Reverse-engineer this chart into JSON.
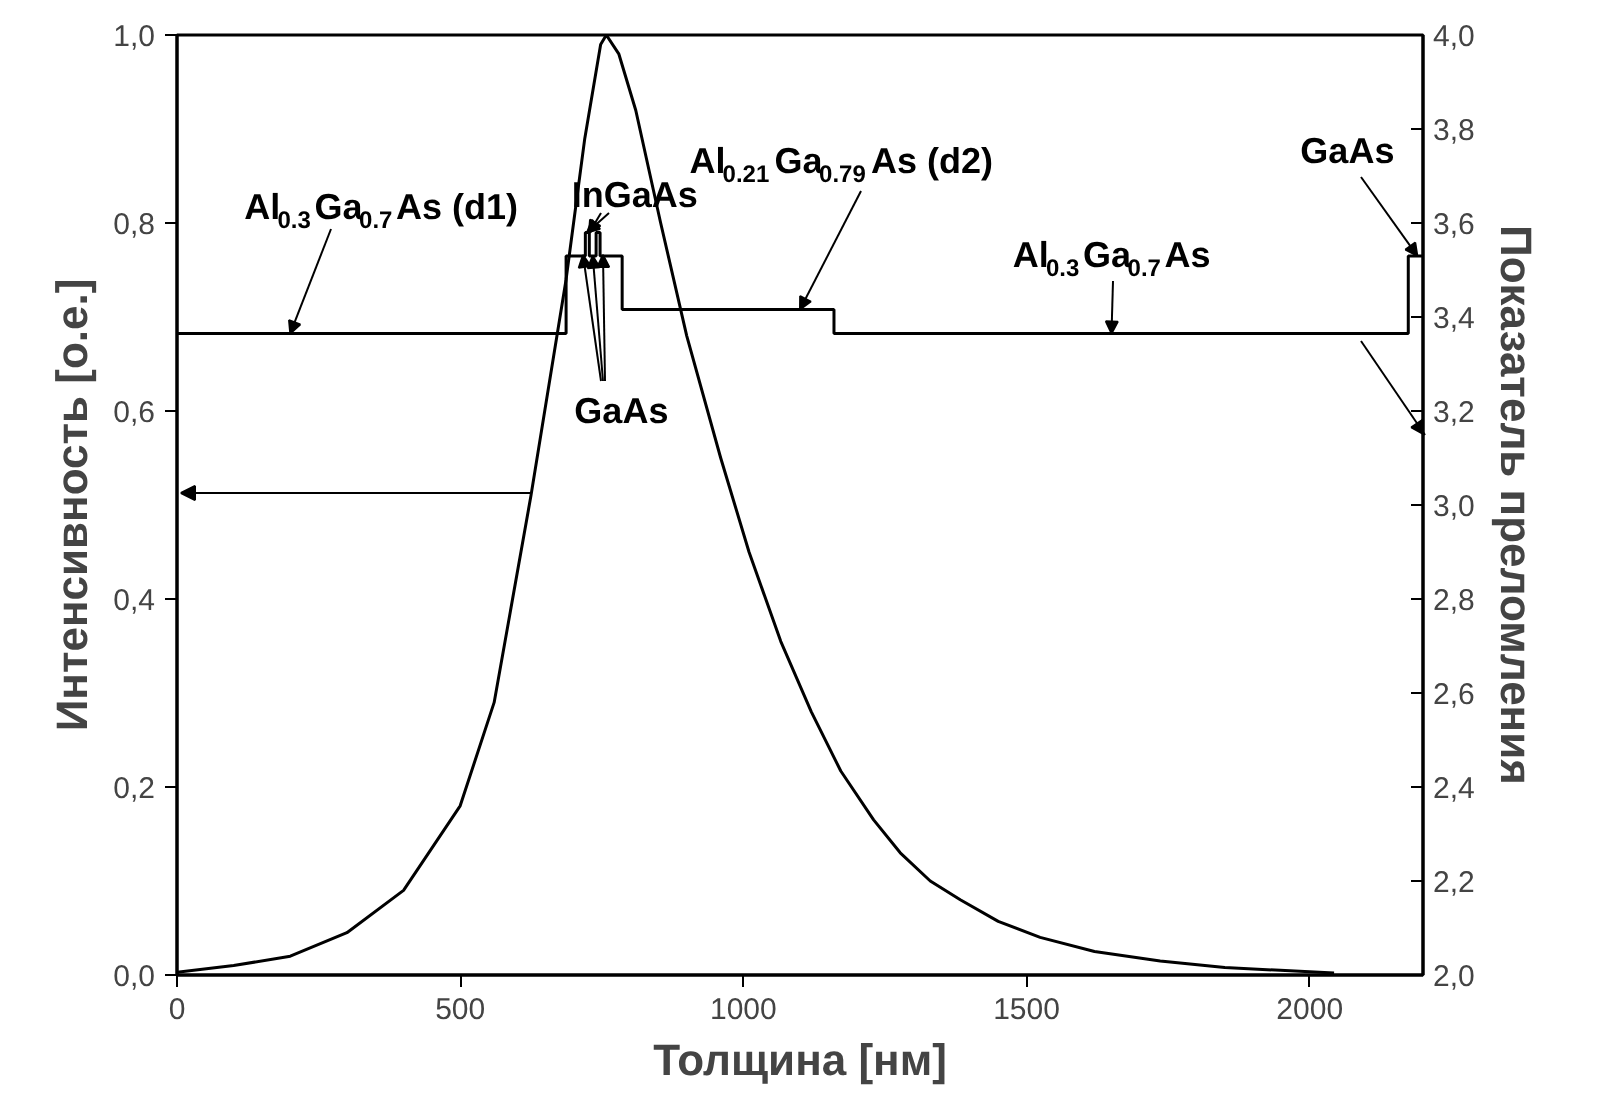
{
  "chart_data": {
    "type": "line",
    "xlabel": "Толщина [нм]",
    "ylabel": "Интенсивность [о.е.]",
    "y2label": "Показатель преломления",
    "xlim": [
      0,
      2200
    ],
    "xticks": [
      0,
      500,
      1000,
      1500,
      2000
    ],
    "ylim": [
      0,
      1
    ],
    "yticks": [
      {
        "value": 0,
        "label": "0,0"
      },
      {
        "value": 0.2,
        "label": "0,2"
      },
      {
        "value": 0.4,
        "label": "0,4"
      },
      {
        "value": 0.6,
        "label": "0,6"
      },
      {
        "value": 0.8,
        "label": "0,8"
      },
      {
        "value": 1,
        "label": "1,0"
      }
    ],
    "y2lim": [
      2,
      4
    ],
    "y2ticks": [
      {
        "value": 2,
        "label": "2,0"
      },
      {
        "value": 2.2,
        "label": "2,2"
      },
      {
        "value": 2.4,
        "label": "2,4"
      },
      {
        "value": 2.6,
        "label": "2,6"
      },
      {
        "value": 2.8,
        "label": "2,8"
      },
      {
        "value": 3,
        "label": "3,0"
      },
      {
        "value": 3.2,
        "label": "3,2"
      },
      {
        "value": 3.4,
        "label": "3,4"
      },
      {
        "value": 3.6,
        "label": "3,6"
      },
      {
        "value": 3.8,
        "label": "3,8"
      },
      {
        "value": 4,
        "label": "4,0"
      }
    ],
    "grid": false,
    "series": [
      {
        "color": "#000000",
        "x": [
          0,
          100,
          200,
          300,
          400,
          500,
          560,
          625,
          687,
          720,
          748,
          758,
          780,
          810,
          854,
          900,
          960,
          1010,
          1066,
          1120,
          1172,
          1230,
          1277,
          1330,
          1383,
          1450,
          1524,
          1620,
          1736,
          1850,
          1948,
          2043
        ],
        "values": [
          0.003,
          0.01,
          0.02,
          0.045,
          0.09,
          0.18,
          0.29,
          0.51,
          0.74,
          0.89,
          0.99,
          1.0,
          0.98,
          0.92,
          0.8,
          0.68,
          0.55,
          0.45,
          0.355,
          0.28,
          0.217,
          0.165,
          0.13,
          0.1,
          0.08,
          0.057,
          0.04,
          0.025,
          0.015,
          0.008,
          0.005,
          0.002
        ]
      },
      {
        "type": "step",
        "axis": "y2",
        "color": "#000000",
        "x": [
          0,
          687,
          721,
          728,
          740,
          747,
          786,
          1160,
          2174,
          2200
        ],
        "values": [
          3.365,
          3.53,
          3.58,
          3.53,
          3.58,
          3.53,
          3.416,
          3.365,
          3.53,
          3.53
        ]
      }
    ],
    "annotations": [
      {
        "text": "Al$_{0.3}$Ga$_{0.7}$As (d1)",
        "x": 200,
        "y": 0.6825
      },
      {
        "text": "InGaAs",
        "x": 724,
        "y": 0.79
      },
      {
        "text": "GaAs",
        "x": 734,
        "y": 0.765
      },
      {
        "text": "Al$_{0.21}$Ga$_{0.79}$As (d2)",
        "x": 1100,
        "y": 0.708
      },
      {
        "text": "Al$_{0.3}$Ga$_{0.7}$As",
        "x": 1650,
        "y": 0.6825
      },
      {
        "text": "GaAs",
        "x": 2190,
        "y": 0.765
      }
    ]
  }
}
